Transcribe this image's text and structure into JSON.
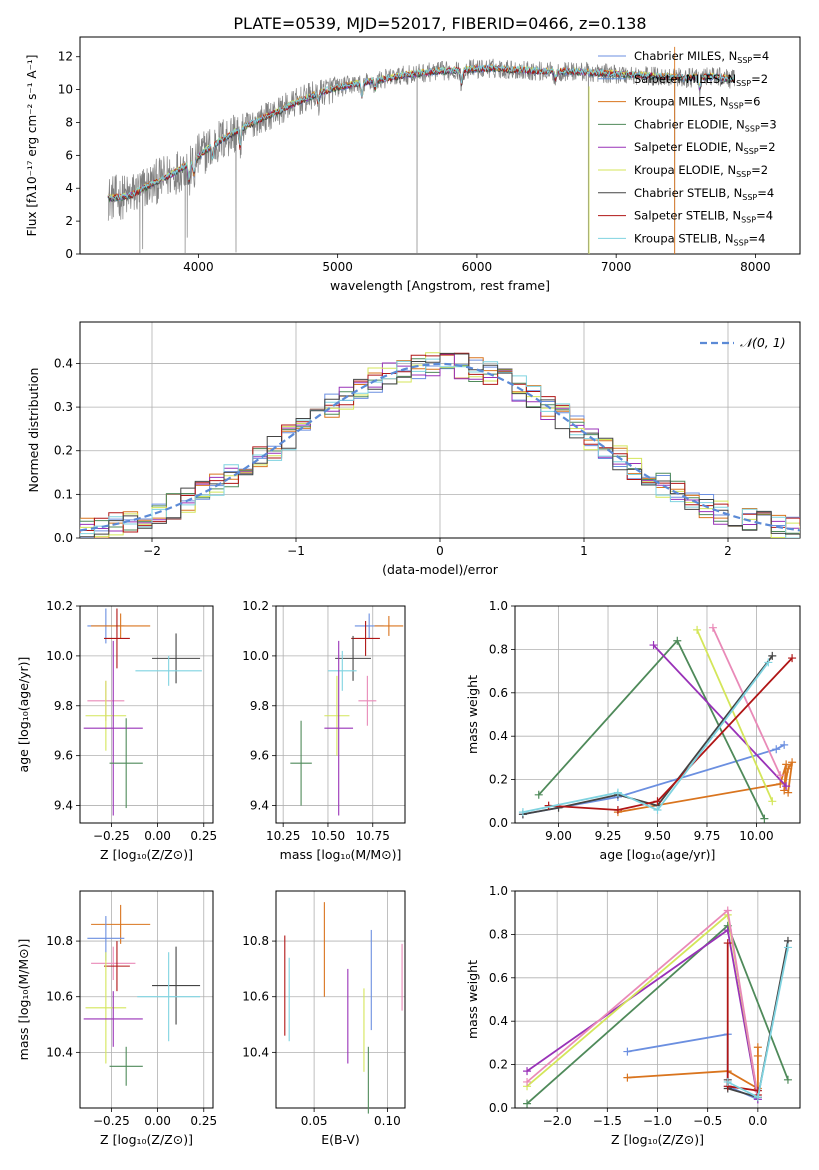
{
  "figure": {
    "title": "PLATE=0539, MJD=52017, FIBERID=0466, z=0.138"
  },
  "colors": {
    "chabrier_miles": "#6b8fe0",
    "salpeter_miles": "#5f8fd6",
    "kroupa_miles": "#d9741e",
    "chabrier_elodie": "#4f8a5a",
    "salpeter_elodie": "#9932b8",
    "kroupa_elodie": "#d4e65a",
    "chabrier_stelib": "#444444",
    "salpeter_stelib": "#b01616",
    "kroupa_stelib": "#7fd3e0",
    "pink": "#e98ab8",
    "normal_curve": "#5b8ad6",
    "grid": "#b0b0b0"
  },
  "chart_data": [
    {
      "id": "spectrum",
      "type": "line",
      "xlabel": "wavelength [Angstrom, rest frame]",
      "ylabel": "Flux [fλ10⁻¹⁷ erg cm⁻² s⁻¹ A⁻¹]",
      "xlim": [
        3150,
        8320
      ],
      "ylim": [
        0,
        13.2
      ],
      "xticks": [
        4000,
        5000,
        6000,
        7000,
        8000
      ],
      "yticks": [
        0,
        2,
        4,
        6,
        8,
        10,
        12
      ],
      "grid": false,
      "legend_position": "top-right",
      "legend": [
        {
          "label": "Chabrier MILES, N",
          "sub": "SSP",
          "val": "=4",
          "color_key": "chabrier_miles"
        },
        {
          "label": "Salpeter MILES, N",
          "sub": "SSP",
          "val": "=2",
          "color_key": "salpeter_miles"
        },
        {
          "label": "Kroupa MILES, N",
          "sub": "SSP",
          "val": "=6",
          "color_key": "kroupa_miles"
        },
        {
          "label": "Chabrier ELODIE, N",
          "sub": "SSP",
          "val": "=3",
          "color_key": "chabrier_elodie"
        },
        {
          "label": "Salpeter ELODIE, N",
          "sub": "SSP",
          "val": "=2",
          "color_key": "salpeter_elodie"
        },
        {
          "label": "Kroupa ELODIE, N",
          "sub": "SSP",
          "val": "=2",
          "color_key": "kroupa_elodie"
        },
        {
          "label": "Chabrier STELIB, N",
          "sub": "SSP",
          "val": "=4",
          "color_key": "chabrier_stelib"
        },
        {
          "label": "Salpeter STELIB, N",
          "sub": "SSP",
          "val": "=4",
          "color_key": "salpeter_stelib"
        },
        {
          "label": "Kroupa STELIB, N",
          "sub": "SSP",
          "val": "=4",
          "color_key": "kroupa_stelib"
        }
      ],
      "continuum": [
        [
          3350,
          3.4
        ],
        [
          3500,
          3.5
        ],
        [
          3650,
          4.2
        ],
        [
          3800,
          4.8
        ],
        [
          3950,
          5.6
        ],
        [
          4100,
          6.6
        ],
        [
          4300,
          7.6
        ],
        [
          4500,
          8.4
        ],
        [
          4700,
          9.2
        ],
        [
          4900,
          9.9
        ],
        [
          5100,
          10.3
        ],
        [
          5300,
          10.6
        ],
        [
          5500,
          10.9
        ],
        [
          5700,
          11.1
        ],
        [
          5900,
          11.2
        ],
        [
          6100,
          11.3
        ],
        [
          6300,
          11.2
        ],
        [
          6500,
          11.1
        ],
        [
          6700,
          11.1
        ],
        [
          6900,
          11.0
        ],
        [
          7100,
          10.9
        ],
        [
          7300,
          10.8
        ],
        [
          7500,
          10.7
        ],
        [
          7700,
          10.8
        ],
        [
          7850,
          10.6
        ]
      ],
      "absorption_features": [
        [
          3933,
          1.2
        ],
        [
          3968,
          1.0
        ],
        [
          4102,
          0.8
        ],
        [
          4300,
          1.3
        ],
        [
          4861,
          0.6
        ],
        [
          5175,
          0.9
        ],
        [
          5270,
          0.5
        ],
        [
          5890,
          0.9
        ],
        [
          6563,
          0.5
        ],
        [
          7600,
          0.7
        ]
      ],
      "outliers": [
        [
          3580,
          0
        ],
        [
          3600,
          0.3
        ],
        [
          3905,
          0
        ],
        [
          3920,
          1.0
        ],
        [
          4270,
          0.1
        ],
        [
          5570,
          0
        ],
        [
          6800,
          0
        ],
        [
          7420,
          0
        ]
      ]
    },
    {
      "id": "residuals",
      "type": "line",
      "xlabel": "(data-model)/error",
      "ylabel": "Normed distribution",
      "xlim": [
        -2.5,
        2.5
      ],
      "ylim": [
        0,
        0.495
      ],
      "xticks": [
        -2,
        -1,
        0,
        1,
        2
      ],
      "yticks": [
        0.0,
        0.1,
        0.2,
        0.3,
        0.4
      ],
      "grid": true,
      "legend_position": "top-right",
      "legend_label": "𝒩(0, 1)",
      "bin_width": 0.1
    },
    {
      "id": "age_vs_Z",
      "type": "scatter",
      "xlabel": "Z [log₁₀(Z/Z⊙)]",
      "ylabel": "age  [log₁₀(age/yr)]",
      "xlim": [
        -0.42,
        0.3
      ],
      "ylim": [
        9.33,
        10.2
      ],
      "xticks": [
        -0.25,
        0.0,
        0.25
      ],
      "yticks": [
        9.4,
        9.6,
        9.8,
        10.0,
        10.2
      ],
      "grid": true,
      "points": [
        {
          "x": -0.28,
          "y": 10.12,
          "ex": 0.1,
          "ey": 0.07,
          "color_key": "chabrier_miles"
        },
        {
          "x": -0.2,
          "y": 10.12,
          "ex": 0.16,
          "ey": 0.05,
          "color_key": "kroupa_miles"
        },
        {
          "x": -0.22,
          "y": 10.07,
          "ex": 0.07,
          "ey": 0.12,
          "color_key": "salpeter_stelib"
        },
        {
          "x": 0.1,
          "y": 9.99,
          "ex": 0.13,
          "ey": 0.1,
          "color_key": "chabrier_stelib"
        },
        {
          "x": 0.06,
          "y": 9.94,
          "ex": 0.18,
          "ey": 0.06,
          "color_key": "kroupa_stelib"
        },
        {
          "x": -0.28,
          "y": 9.82,
          "ex": 0.1,
          "ey": 0.08,
          "color_key": "pink"
        },
        {
          "x": -0.28,
          "y": 9.76,
          "ex": 0.11,
          "ey": 0.14,
          "color_key": "kroupa_elodie"
        },
        {
          "x": -0.24,
          "y": 9.71,
          "ex": 0.16,
          "ey": 0.35,
          "color_key": "salpeter_elodie"
        },
        {
          "x": -0.17,
          "y": 9.57,
          "ex": 0.09,
          "ey": 0.18,
          "color_key": "chabrier_elodie"
        }
      ]
    },
    {
      "id": "age_vs_mass",
      "type": "scatter",
      "xlabel": "mass [log₁₀(M/M⊙)]",
      "ylabel": "",
      "xlim": [
        10.21,
        10.93
      ],
      "ylim": [
        9.33,
        10.2
      ],
      "xticks": [
        10.25,
        10.5,
        10.75
      ],
      "yticks": [
        9.4,
        9.6,
        9.8,
        10.0,
        10.2
      ],
      "grid": true,
      "points": [
        {
          "x": 10.73,
          "y": 10.12,
          "ex": 0.08,
          "ey": 0.05,
          "color_key": "chabrier_miles"
        },
        {
          "x": 10.84,
          "y": 10.12,
          "ex": 0.08,
          "ey": 0.04,
          "color_key": "kroupa_miles"
        },
        {
          "x": 10.71,
          "y": 10.07,
          "ex": 0.08,
          "ey": 0.07,
          "color_key": "salpeter_stelib"
        },
        {
          "x": 10.64,
          "y": 9.99,
          "ex": 0.1,
          "ey": 0.09,
          "color_key": "chabrier_stelib"
        },
        {
          "x": 10.58,
          "y": 9.94,
          "ex": 0.08,
          "ey": 0.08,
          "color_key": "kroupa_stelib"
        },
        {
          "x": 10.72,
          "y": 9.82,
          "ex": 0.05,
          "ey": 0.1,
          "color_key": "pink"
        },
        {
          "x": 10.55,
          "y": 9.76,
          "ex": 0.07,
          "ey": 0.16,
          "color_key": "kroupa_elodie"
        },
        {
          "x": 10.56,
          "y": 9.71,
          "ex": 0.08,
          "ey": 0.35,
          "color_key": "salpeter_elodie"
        },
        {
          "x": 10.35,
          "y": 9.57,
          "ex": 0.06,
          "ey": 0.17,
          "color_key": "chabrier_elodie"
        }
      ]
    },
    {
      "id": "mass_weight_vs_age",
      "type": "line",
      "xlabel": "age  [log₁₀(age/yr)]",
      "ylabel": "mass weight",
      "xlim": [
        8.78,
        10.22
      ],
      "ylim": [
        0,
        1.0
      ],
      "xticks": [
        9.0,
        9.25,
        9.5,
        9.75,
        10.0
      ],
      "yticks": [
        0.0,
        0.2,
        0.4,
        0.6,
        0.8,
        1.0
      ],
      "grid": true,
      "series": [
        {
          "color_key": "chabrier_miles",
          "points": [
            [
              8.82,
              0.04
            ],
            [
              9.3,
              0.12
            ],
            [
              10.1,
              0.34
            ],
            [
              10.14,
              0.36
            ]
          ]
        },
        {
          "color_key": "kroupa_miles",
          "points": [
            [
              9.3,
              0.05
            ],
            [
              10.12,
              0.18
            ],
            [
              10.15,
              0.27
            ],
            [
              10.14,
              0.15
            ],
            [
              10.16,
              0.25
            ],
            [
              10.18,
              0.28
            ],
            [
              10.16,
              0.14
            ]
          ]
        },
        {
          "color_key": "chabrier_elodie",
          "points": [
            [
              8.9,
              0.13
            ],
            [
              9.6,
              0.84
            ],
            [
              10.04,
              0.02
            ]
          ]
        },
        {
          "color_key": "salpeter_elodie",
          "points": [
            [
              9.48,
              0.82
            ],
            [
              10.15,
              0.17
            ]
          ]
        },
        {
          "color_key": "kroupa_elodie",
          "points": [
            [
              9.7,
              0.89
            ],
            [
              10.08,
              0.1
            ]
          ]
        },
        {
          "color_key": "pink",
          "points": [
            [
              9.78,
              0.9
            ],
            [
              10.12,
              0.22
            ]
          ]
        },
        {
          "color_key": "chabrier_stelib",
          "points": [
            [
              8.82,
              0.04
            ],
            [
              9.0,
              0.07
            ],
            [
              9.3,
              0.13
            ],
            [
              9.5,
              0.08
            ],
            [
              10.08,
              0.77
            ]
          ]
        },
        {
          "color_key": "salpeter_stelib",
          "points": [
            [
              8.95,
              0.08
            ],
            [
              9.3,
              0.06
            ],
            [
              9.5,
              0.1
            ],
            [
              10.18,
              0.76
            ]
          ]
        },
        {
          "color_key": "kroupa_stelib",
          "points": [
            [
              8.82,
              0.05
            ],
            [
              9.3,
              0.14
            ],
            [
              9.5,
              0.06
            ],
            [
              10.06,
              0.74
            ]
          ]
        }
      ]
    },
    {
      "id": "mass_vs_Z",
      "type": "scatter",
      "xlabel": "Z [log₁₀(Z/Z⊙)]",
      "ylabel": "mass [log₁₀(M/M⊙)]",
      "xlim": [
        -0.42,
        0.3
      ],
      "ylim": [
        10.2,
        10.98
      ],
      "xticks": [
        -0.25,
        0.0,
        0.25
      ],
      "yticks": [
        10.4,
        10.6,
        10.8
      ],
      "grid": true,
      "points": [
        {
          "x": -0.2,
          "y": 10.86,
          "ex": 0.16,
          "ey": 0.07,
          "color_key": "kroupa_miles"
        },
        {
          "x": -0.28,
          "y": 10.81,
          "ex": 0.1,
          "ey": 0.08,
          "color_key": "chabrier_miles"
        },
        {
          "x": -0.24,
          "y": 10.72,
          "ex": 0.12,
          "ey": 0.06,
          "color_key": "pink"
        },
        {
          "x": -0.22,
          "y": 10.71,
          "ex": 0.07,
          "ey": 0.09,
          "color_key": "salpeter_stelib"
        },
        {
          "x": 0.1,
          "y": 10.64,
          "ex": 0.13,
          "ey": 0.14,
          "color_key": "chabrier_stelib"
        },
        {
          "x": 0.06,
          "y": 10.6,
          "ex": 0.17,
          "ey": 0.16,
          "color_key": "kroupa_stelib"
        },
        {
          "x": -0.28,
          "y": 10.56,
          "ex": 0.11,
          "ey": 0.2,
          "color_key": "kroupa_elodie"
        },
        {
          "x": -0.24,
          "y": 10.52,
          "ex": 0.16,
          "ey": 0.1,
          "color_key": "salpeter_elodie"
        },
        {
          "x": -0.17,
          "y": 10.35,
          "ex": 0.09,
          "ey": 0.07,
          "color_key": "chabrier_elodie"
        }
      ]
    },
    {
      "id": "ebv",
      "type": "scatter",
      "xlabel": "E(B-V)",
      "ylabel": "",
      "xlim": [
        0.024,
        0.112
      ],
      "ylim": [
        10.2,
        10.98
      ],
      "xticks": [
        0.05,
        0.1
      ],
      "yticks": [
        10.4,
        10.6,
        10.8
      ],
      "grid": true,
      "points": [
        {
          "x": 0.03,
          "y": 10.64,
          "ey": 0.18,
          "color_key": "salpeter_stelib"
        },
        {
          "x": 0.033,
          "y": 10.59,
          "ey": 0.15,
          "color_key": "kroupa_stelib"
        },
        {
          "x": 0.057,
          "y": 10.77,
          "ey": 0.17,
          "color_key": "kroupa_miles"
        },
        {
          "x": 0.073,
          "y": 10.53,
          "ey": 0.17,
          "color_key": "salpeter_elodie"
        },
        {
          "x": 0.084,
          "y": 10.48,
          "ey": 0.15,
          "color_key": "kroupa_elodie"
        },
        {
          "x": 0.087,
          "y": 10.3,
          "ey": 0.12,
          "color_key": "chabrier_elodie"
        },
        {
          "x": 0.089,
          "y": 10.66,
          "ey": 0.18,
          "color_key": "chabrier_miles"
        },
        {
          "x": 0.11,
          "y": 10.67,
          "ey": 0.12,
          "color_key": "pink"
        }
      ]
    },
    {
      "id": "mass_weight_vs_Z",
      "type": "line",
      "xlabel": "Z [log₁₀(Z/Z⊙)]",
      "ylabel": "mass weight",
      "xlim": [
        -2.42,
        0.42
      ],
      "ylim": [
        0,
        1.0
      ],
      "xticks": [
        -2.0,
        -1.5,
        -1.0,
        -0.5,
        0.0
      ],
      "yticks": [
        0.0,
        0.2,
        0.4,
        0.6,
        0.8,
        1.0
      ],
      "grid": true,
      "series": [
        {
          "color_key": "chabrier_miles",
          "points": [
            [
              -1.3,
              0.26
            ],
            [
              -0.3,
              0.34
            ],
            [
              -0.3,
              0.1
            ],
            [
              0.0,
              0.04
            ]
          ]
        },
        {
          "color_key": "kroupa_miles",
          "points": [
            [
              -1.3,
              0.14
            ],
            [
              -0.3,
              0.17
            ],
            [
              0.0,
              0.09
            ],
            [
              0.0,
              0.28
            ],
            [
              0.0,
              0.24
            ],
            [
              0.0,
              0.05
            ]
          ]
        },
        {
          "color_key": "chabrier_elodie",
          "points": [
            [
              -2.3,
              0.02
            ],
            [
              -0.3,
              0.84
            ],
            [
              0.3,
              0.13
            ]
          ]
        },
        {
          "color_key": "salpeter_elodie",
          "points": [
            [
              -2.3,
              0.17
            ],
            [
              -0.3,
              0.82
            ],
            [
              0.0,
              0.04
            ]
          ]
        },
        {
          "color_key": "kroupa_elodie",
          "points": [
            [
              -2.3,
              0.1
            ],
            [
              -0.3,
              0.89
            ],
            [
              0.0,
              0.05
            ]
          ]
        },
        {
          "color_key": "pink",
          "points": [
            [
              -2.3,
              0.12
            ],
            [
              -0.3,
              0.91
            ],
            [
              0.0,
              0.05
            ]
          ]
        },
        {
          "color_key": "chabrier_stelib",
          "points": [
            [
              -0.3,
              0.13
            ],
            [
              -0.3,
              0.09
            ],
            [
              0.0,
              0.05
            ],
            [
              0.3,
              0.77
            ]
          ]
        },
        {
          "color_key": "salpeter_stelib",
          "points": [
            [
              -0.3,
              0.76
            ],
            [
              -0.3,
              0.1
            ],
            [
              0.0,
              0.08
            ],
            [
              0.0,
              0.06
            ]
          ]
        },
        {
          "color_key": "kroupa_stelib",
          "points": [
            [
              -0.3,
              0.12
            ],
            [
              0.0,
              0.05
            ],
            [
              0.3,
              0.74
            ]
          ]
        }
      ]
    }
  ]
}
